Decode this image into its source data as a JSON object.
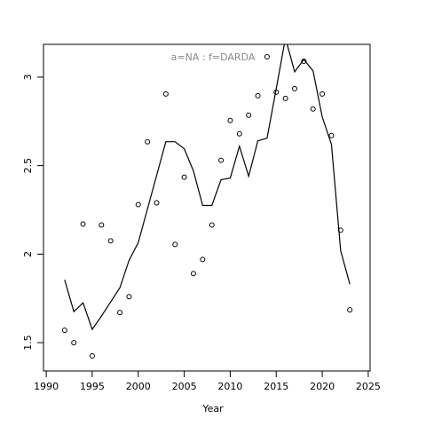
{
  "chart_data": {
    "type": "scatter",
    "annotation": "a=NA  :  f=DARDA",
    "x_label": "Year",
    "x": [
      1992,
      1993,
      1994,
      1995,
      1996,
      1997,
      1998,
      1999,
      2000,
      2001,
      2002,
      2003,
      2004,
      2005,
      2006,
      2007,
      2008,
      2009,
      2010,
      2011,
      2012,
      2013,
      2014,
      2015,
      2016,
      2017,
      2018,
      2019,
      2020,
      2021,
      2022,
      2023
    ],
    "series": [
      {
        "type": "points",
        "color": "#000000",
        "values": [
          1.57,
          1.5,
          2.17,
          1.425,
          2.165,
          2.075,
          1.67,
          1.76,
          2.28,
          2.635,
          2.29,
          2.905,
          2.055,
          2.435,
          1.89,
          1.97,
          2.165,
          2.53,
          2.755,
          2.68,
          2.785,
          2.895,
          3.115,
          2.915,
          2.88,
          2.935,
          3.09,
          2.82,
          2.905,
          2.67,
          2.135,
          1.685
        ]
      },
      {
        "type": "line",
        "color": "#000000",
        "values": [
          1.855,
          1.675,
          1.725,
          1.575,
          1.65,
          1.73,
          1.81,
          1.965,
          2.065,
          2.255,
          2.445,
          2.635,
          2.635,
          2.595,
          2.47,
          2.275,
          2.275,
          2.42,
          2.43,
          2.61,
          2.44,
          2.64,
          2.655,
          2.935,
          3.22,
          3.03,
          3.1,
          3.035,
          2.775,
          2.62,
          2.02,
          1.83
        ]
      }
    ],
    "xlim": [
      1989.7,
      2025.2
    ],
    "xticks": [
      1990,
      1995,
      2000,
      2005,
      2010,
      2015,
      2020,
      2025
    ],
    "ylim": [
      1.34,
      3.185
    ],
    "yticks": [
      1.5,
      2.0,
      2.5,
      3.0
    ]
  }
}
